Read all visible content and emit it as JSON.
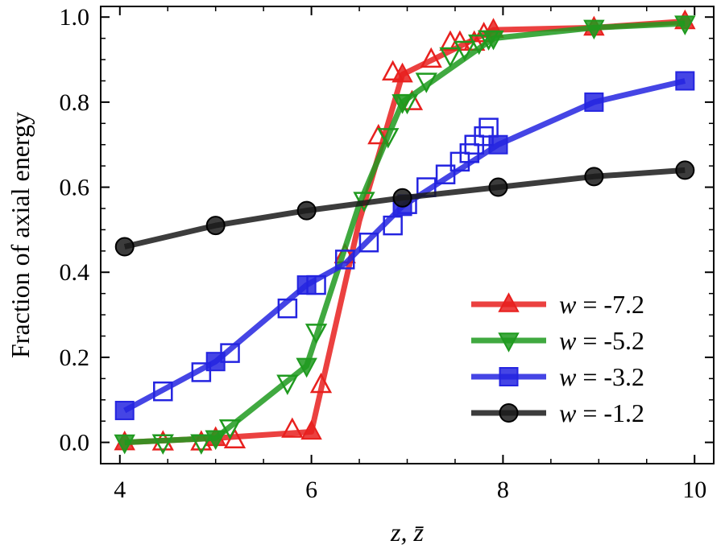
{
  "chart_data": {
    "type": "line",
    "xlabel": "z, z̄",
    "ylabel": "Fraction of axial energy",
    "xlim": [
      3.8,
      10.2
    ],
    "ylim": [
      -0.05,
      1.025
    ],
    "x_ticks": [
      4,
      6,
      8,
      10
    ],
    "y_ticks": [
      0.0,
      0.2,
      0.4,
      0.6,
      0.8,
      1.0
    ],
    "x_tick_labels": [
      "4",
      "6",
      "8",
      "10"
    ],
    "y_tick_labels": [
      "0.0",
      "0.2",
      "0.4",
      "0.6",
      "0.8",
      "1.0"
    ],
    "minor_x_step": 0.5,
    "minor_y_step": 0.05,
    "grid": false,
    "legend_position": "lower-right",
    "series": [
      {
        "name": "w = -7.2",
        "legend_var": "w",
        "legend_value": " = -7.2",
        "color": "#e8201e",
        "marker": "triangle-up",
        "line": [
          [
            4.05,
            0.0
          ],
          [
            5.0,
            0.01
          ],
          [
            6.0,
            0.025
          ],
          [
            6.5,
            0.52
          ],
          [
            6.95,
            0.865
          ],
          [
            7.9,
            0.97
          ],
          [
            8.95,
            0.975
          ],
          [
            9.9,
            0.99
          ]
        ],
        "filled": [
          [
            4.05,
            0.0
          ],
          [
            5.0,
            0.01
          ],
          [
            6.0,
            0.025
          ],
          [
            6.95,
            0.865
          ],
          [
            7.9,
            0.97
          ],
          [
            8.95,
            0.975
          ],
          [
            9.9,
            0.99
          ]
        ],
        "open": [
          [
            4.45,
            0.0
          ],
          [
            4.85,
            0.0
          ],
          [
            5.2,
            0.005
          ],
          [
            5.8,
            0.03
          ],
          [
            6.1,
            0.135
          ],
          [
            6.35,
            0.44
          ],
          [
            6.7,
            0.72
          ],
          [
            6.85,
            0.87
          ],
          [
            7.05,
            0.8
          ],
          [
            7.25,
            0.9
          ],
          [
            7.45,
            0.94
          ],
          [
            7.55,
            0.94
          ],
          [
            7.7,
            0.94
          ],
          [
            7.8,
            0.96
          ]
        ]
      },
      {
        "name": "w = -5.2",
        "legend_var": "w",
        "legend_value": " = -5.2",
        "color": "#1f9a1f",
        "marker": "triangle-down",
        "line": [
          [
            4.05,
            0.0
          ],
          [
            5.0,
            0.01
          ],
          [
            5.95,
            0.18
          ],
          [
            6.5,
            0.56
          ],
          [
            6.95,
            0.8
          ],
          [
            7.9,
            0.95
          ],
          [
            8.95,
            0.975
          ],
          [
            9.9,
            0.985
          ]
        ],
        "filled": [
          [
            4.05,
            0.0
          ],
          [
            5.0,
            0.01
          ],
          [
            5.95,
            0.18
          ],
          [
            6.95,
            0.8
          ],
          [
            7.9,
            0.95
          ],
          [
            8.95,
            0.975
          ],
          [
            9.9,
            0.985
          ]
        ],
        "open": [
          [
            4.45,
            0.0
          ],
          [
            4.85,
            0.0
          ],
          [
            5.15,
            0.035
          ],
          [
            5.75,
            0.14
          ],
          [
            6.05,
            0.26
          ],
          [
            6.55,
            0.57
          ],
          [
            6.8,
            0.72
          ],
          [
            7.0,
            0.8
          ],
          [
            7.2,
            0.85
          ],
          [
            7.45,
            0.91
          ],
          [
            7.6,
            0.925
          ],
          [
            7.75,
            0.94
          ],
          [
            7.85,
            0.95
          ]
        ]
      },
      {
        "name": "w = -3.2",
        "legend_var": "w",
        "legend_value": " = -3.2",
        "color": "#2424e0",
        "marker": "square",
        "line": [
          [
            4.05,
            0.075
          ],
          [
            5.0,
            0.19
          ],
          [
            5.95,
            0.37
          ],
          [
            6.35,
            0.42
          ],
          [
            6.95,
            0.555
          ],
          [
            7.95,
            0.7
          ],
          [
            8.95,
            0.8
          ],
          [
            9.9,
            0.85
          ]
        ],
        "filled": [
          [
            4.05,
            0.075
          ],
          [
            5.0,
            0.19
          ],
          [
            5.95,
            0.37
          ],
          [
            6.95,
            0.555
          ],
          [
            7.95,
            0.7
          ],
          [
            8.95,
            0.8
          ],
          [
            9.9,
            0.85
          ]
        ],
        "open": [
          [
            4.45,
            0.12
          ],
          [
            4.85,
            0.165
          ],
          [
            5.15,
            0.21
          ],
          [
            5.75,
            0.315
          ],
          [
            6.05,
            0.37
          ],
          [
            6.35,
            0.43
          ],
          [
            6.6,
            0.47
          ],
          [
            6.85,
            0.51
          ],
          [
            7.0,
            0.56
          ],
          [
            7.2,
            0.6
          ],
          [
            7.4,
            0.63
          ],
          [
            7.55,
            0.66
          ],
          [
            7.65,
            0.68
          ],
          [
            7.7,
            0.7
          ],
          [
            7.8,
            0.72
          ],
          [
            7.85,
            0.74
          ]
        ]
      },
      {
        "name": "w = -1.2",
        "legend_var": "w",
        "legend_value": " = -1.2",
        "color": "#1a1a1a",
        "marker": "circle",
        "line": [
          [
            4.05,
            0.46
          ],
          [
            5.0,
            0.51
          ],
          [
            5.95,
            0.545
          ],
          [
            6.95,
            0.575
          ],
          [
            7.95,
            0.6
          ],
          [
            8.95,
            0.625
          ],
          [
            9.9,
            0.64
          ]
        ],
        "filled": [
          [
            4.05,
            0.46
          ],
          [
            5.0,
            0.51
          ],
          [
            5.95,
            0.545
          ],
          [
            6.95,
            0.575
          ],
          [
            7.95,
            0.6
          ],
          [
            8.95,
            0.625
          ],
          [
            9.9,
            0.64
          ]
        ],
        "open": []
      }
    ]
  }
}
